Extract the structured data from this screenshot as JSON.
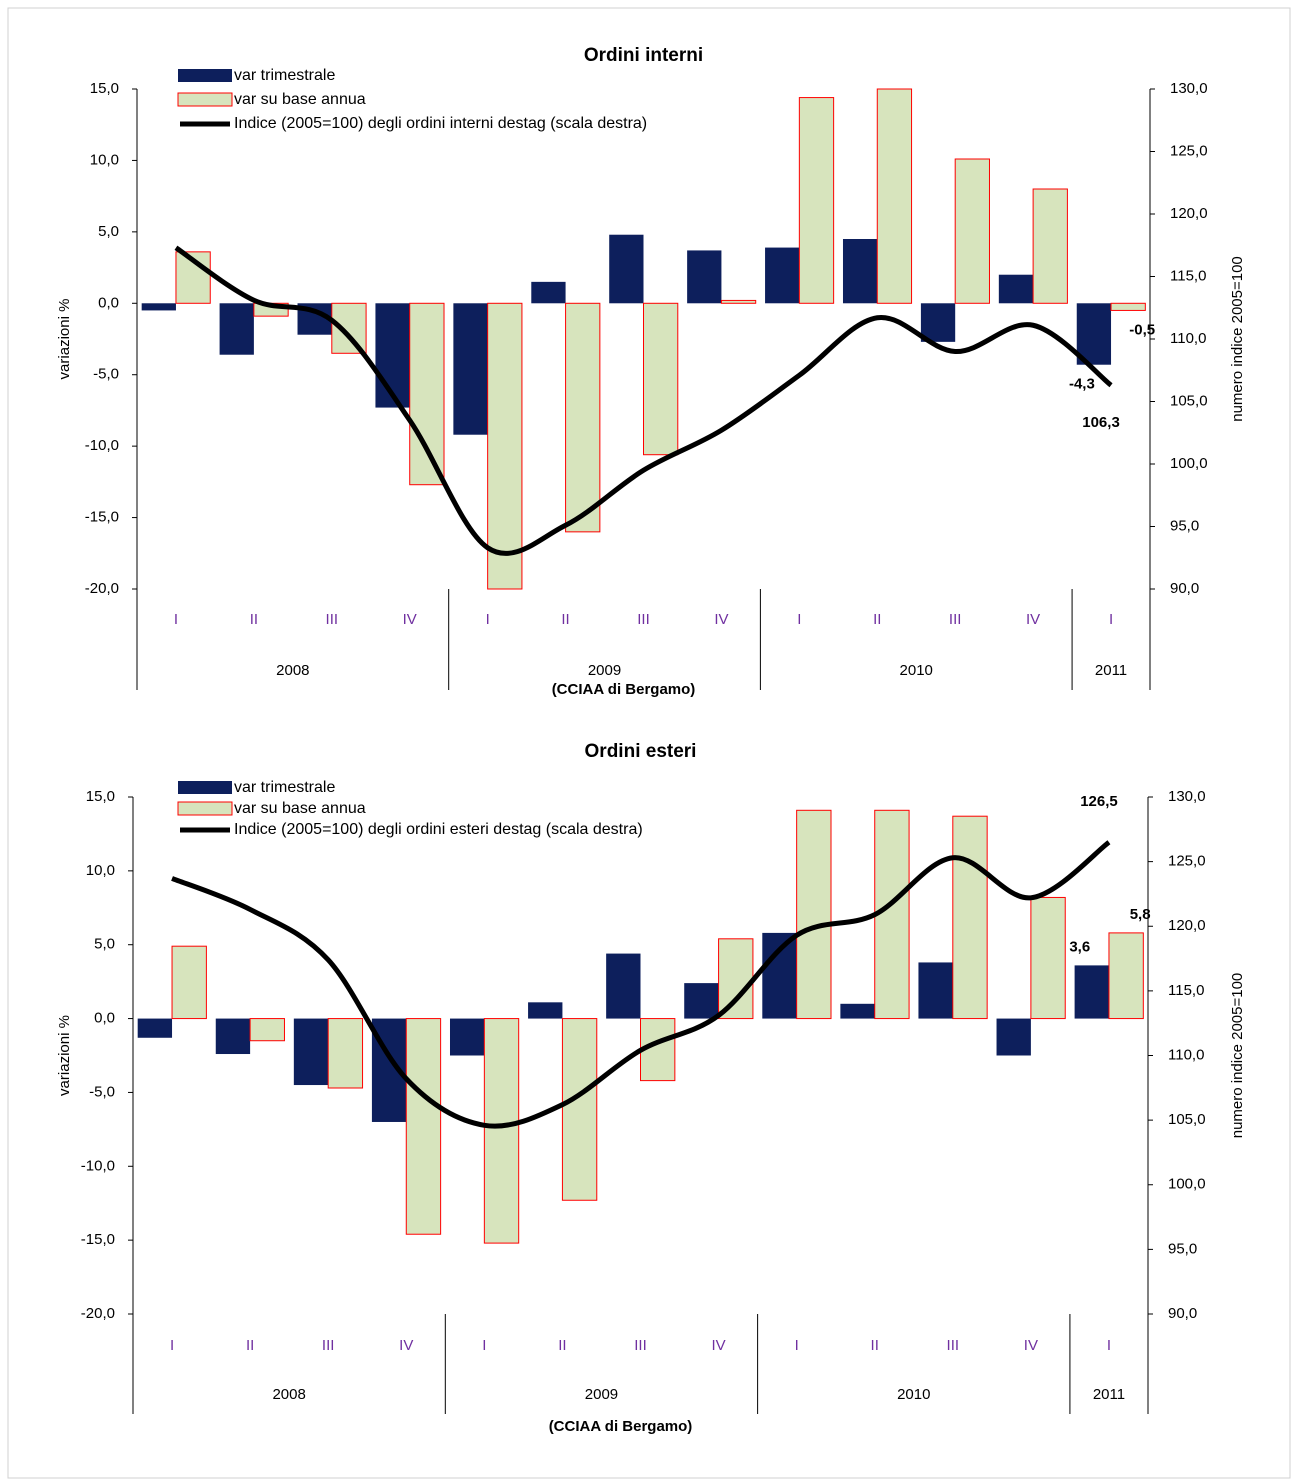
{
  "chart_data": [
    {
      "type": "bar-line",
      "title": "Ordini interni",
      "ylabel": "variazioni %",
      "y2label": "numero indice 2005=100",
      "source": "(CCIAA di Bergamo)",
      "categories": [
        "I",
        "II",
        "III",
        "IV",
        "I",
        "II",
        "III",
        "IV",
        "I",
        "II",
        "III",
        "IV",
        "I"
      ],
      "category_color": "#7030a0",
      "groups": [
        "2008",
        "2009",
        "2010",
        "2011"
      ],
      "series": [
        {
          "name": "var trimestrale",
          "type": "bar",
          "color": "#0d1f5c",
          "values": [
            -0.5,
            -3.6,
            -2.2,
            -7.3,
            -9.2,
            1.5,
            4.8,
            3.7,
            3.9,
            4.5,
            -2.7,
            2.0,
            -4.3
          ],
          "value_labels": [
            null,
            null,
            null,
            null,
            null,
            null,
            null,
            null,
            null,
            null,
            null,
            null,
            "-4,3"
          ]
        },
        {
          "name": "var su base annua",
          "type": "bar",
          "color": "#d7e4bd",
          "edgecolor": "#ff0000",
          "values": [
            3.6,
            -0.9,
            -3.5,
            -12.7,
            -20.0,
            -16.0,
            -10.6,
            0.2,
            14.4,
            15.0,
            10.1,
            8.0,
            -0.5
          ],
          "value_labels": [
            null,
            null,
            null,
            null,
            null,
            null,
            null,
            null,
            null,
            null,
            null,
            null,
            "-0,5"
          ]
        },
        {
          "name": "Indice (2005=100) degli ordini interni destag (scala destra)",
          "type": "line",
          "axis": "y2",
          "color": "#000000",
          "values": [
            117.3,
            113.1,
            111.5,
            103.5,
            93.3,
            95.1,
            99.5,
            102.7,
            107.1,
            111.7,
            109.0,
            111.1,
            106.3
          ],
          "value_labels": [
            null,
            null,
            null,
            null,
            null,
            null,
            null,
            null,
            null,
            null,
            null,
            null,
            "106,3"
          ]
        }
      ],
      "ylim": [
        -20,
        15
      ],
      "yticks": [
        {
          "value": -20,
          "label": "-20,0"
        },
        {
          "value": -15,
          "label": "-15,0"
        },
        {
          "value": -10,
          "label": "-10,0"
        },
        {
          "value": -5,
          "label": "-5,0"
        },
        {
          "value": 0,
          "label": "0,0"
        },
        {
          "value": 5,
          "label": "5,0"
        },
        {
          "value": 10,
          "label": "10,0"
        },
        {
          "value": 15,
          "label": "15,0"
        }
      ],
      "y2lim": [
        90,
        130
      ],
      "y2ticks": [
        {
          "value": 90,
          "label": "90,0"
        },
        {
          "value": 95,
          "label": "95,0"
        },
        {
          "value": 100,
          "label": "100,0"
        },
        {
          "value": 105,
          "label": "105,0"
        },
        {
          "value": 110,
          "label": "110,0"
        },
        {
          "value": 115,
          "label": "115,0"
        },
        {
          "value": 120,
          "label": "120,0"
        },
        {
          "value": 125,
          "label": "125,0"
        },
        {
          "value": 130,
          "label": "130,0"
        }
      ],
      "grid": false,
      "legend": "upper left"
    },
    {
      "type": "bar-line",
      "title": "Ordini esteri",
      "ylabel": "variazioni %",
      "y2label": "numero indice 2005=100",
      "source": "(CCIAA di Bergamo)",
      "categories": [
        "I",
        "II",
        "III",
        "IV",
        "I",
        "II",
        "III",
        "IV",
        "I",
        "II",
        "III",
        "IV",
        "I"
      ],
      "category_color": "#7030a0",
      "groups": [
        "2008",
        "2009",
        "2010",
        "2011"
      ],
      "series": [
        {
          "name": "var trimestrale",
          "type": "bar",
          "color": "#0d1f5c",
          "values": [
            -1.3,
            -2.4,
            -4.5,
            -7.0,
            -2.5,
            1.1,
            4.4,
            2.4,
            5.8,
            1.0,
            3.8,
            -2.5,
            3.6
          ],
          "value_labels": [
            null,
            null,
            null,
            null,
            null,
            null,
            null,
            null,
            null,
            null,
            null,
            null,
            "3,6"
          ]
        },
        {
          "name": "var su base annua",
          "type": "bar",
          "color": "#d7e4bd",
          "edgecolor": "#ff0000",
          "values": [
            4.9,
            -1.5,
            -4.7,
            -14.6,
            -15.2,
            -12.3,
            -4.2,
            5.4,
            14.1,
            14.1,
            13.7,
            8.2,
            5.8
          ],
          "value_labels": [
            null,
            null,
            null,
            null,
            null,
            null,
            null,
            null,
            null,
            null,
            null,
            null,
            "5,8"
          ]
        },
        {
          "name": "Indice (2005=100) degli ordini esteri destag (scala destra)",
          "type": "line",
          "axis": "y2",
          "color": "#000000",
          "values": [
            123.7,
            121.3,
            117.4,
            108.2,
            104.6,
            106.2,
            110.4,
            113.1,
            119.3,
            120.9,
            125.3,
            122.2,
            126.5
          ],
          "value_labels": [
            null,
            null,
            null,
            null,
            null,
            null,
            null,
            null,
            null,
            null,
            null,
            null,
            "126,5"
          ]
        }
      ],
      "ylim": [
        -20,
        15
      ],
      "yticks": [
        {
          "value": -20,
          "label": "-20,0"
        },
        {
          "value": -15,
          "label": "-15,0"
        },
        {
          "value": -10,
          "label": "-10,0"
        },
        {
          "value": -5,
          "label": "-5,0"
        },
        {
          "value": 0,
          "label": "0,0"
        },
        {
          "value": 5,
          "label": "5,0"
        },
        {
          "value": 10,
          "label": "10,0"
        },
        {
          "value": 15,
          "label": "15,0"
        }
      ],
      "y2lim": [
        90,
        130
      ],
      "y2ticks": [
        {
          "value": 90,
          "label": "90,0"
        },
        {
          "value": 95,
          "label": "95,0"
        },
        {
          "value": 100,
          "label": "100,0"
        },
        {
          "value": 105,
          "label": "105,0"
        },
        {
          "value": 110,
          "label": "110,0"
        },
        {
          "value": 115,
          "label": "115,0"
        },
        {
          "value": 120,
          "label": "120,0"
        },
        {
          "value": 125,
          "label": "125,0"
        },
        {
          "value": 130,
          "label": "130,0"
        }
      ],
      "grid": false,
      "legend": "upper left"
    }
  ]
}
